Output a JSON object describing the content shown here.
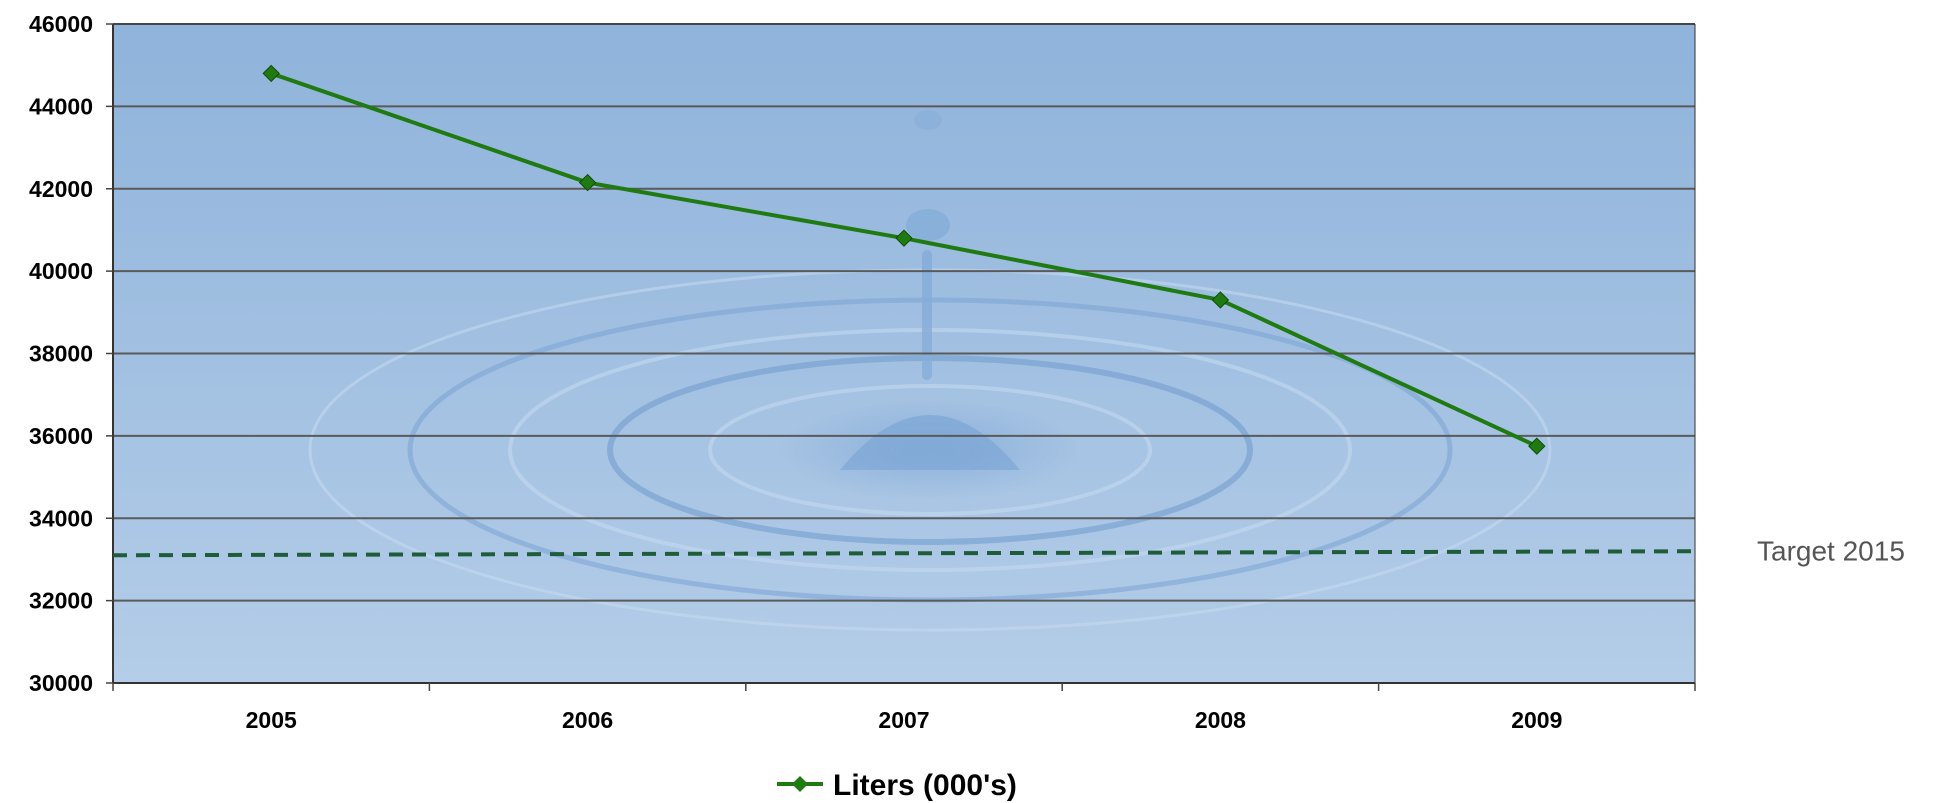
{
  "chart_data": {
    "type": "line",
    "categories": [
      "2005",
      "2006",
      "2007",
      "2008",
      "2009"
    ],
    "series": [
      {
        "name": "Liters (000's)",
        "values": [
          44800,
          42150,
          40800,
          39300,
          35750
        ],
        "color": "#1f7a12",
        "marker": "diamond"
      }
    ],
    "ylim": [
      30000,
      46000
    ],
    "yticks": [
      "30000",
      "32000",
      "34000",
      "36000",
      "38000",
      "40000",
      "42000",
      "44000",
      "46000"
    ],
    "target": {
      "label": "Target 2015",
      "value": 33150,
      "color": "#1e5c3a",
      "style": "dashed"
    },
    "grid": true,
    "legend": "bottom-center",
    "background": "water-drop image",
    "colors": {
      "plot_top": "#8fb3db",
      "plot_bottom": "#b4cde8",
      "gridline": "#5a5a5a"
    }
  }
}
